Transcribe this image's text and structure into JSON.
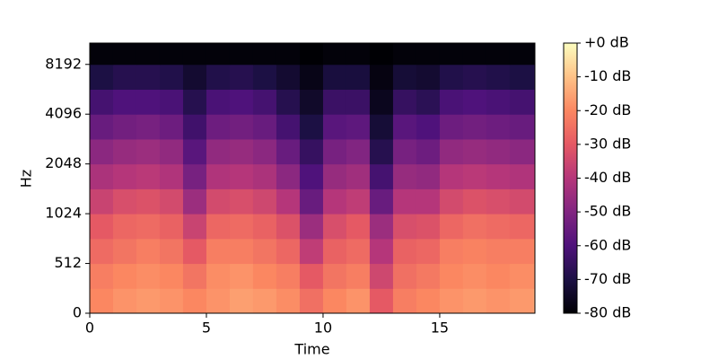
{
  "chart_data": {
    "type": "heatmap",
    "xlabel": "Time",
    "ylabel": "Hz",
    "xlim": [
      0,
      19.08
    ],
    "xticks": [
      0,
      5,
      10,
      15
    ],
    "ylim": [
      0,
      11025
    ],
    "yticks": [
      0,
      512,
      1024,
      2048,
      4096,
      8192
    ],
    "yscale": "symlog",
    "linthresh": 512,
    "x_edges": [
      0,
      1,
      2,
      3,
      4,
      5,
      6,
      7,
      8,
      9,
      10,
      11,
      12,
      13,
      14,
      15,
      16,
      17,
      18,
      19,
      19.08
    ],
    "y_edges": [
      0,
      256,
      512,
      724,
      1024,
      1448,
      2048,
      2896,
      4096,
      5793,
      8192,
      11025
    ],
    "z": [
      [
        -20,
        -18,
        -17,
        -18,
        -20,
        -18,
        -16,
        -17,
        -19,
        -25,
        -20,
        -18,
        -30,
        -22,
        -20,
        -18,
        -17,
        -18,
        -17,
        -15
      ],
      [
        -22,
        -20,
        -19,
        -20,
        -24,
        -19,
        -18,
        -20,
        -22,
        -30,
        -24,
        -22,
        -35,
        -25,
        -23,
        -20,
        -19,
        -20,
        -19,
        -18
      ],
      [
        -26,
        -24,
        -22,
        -24,
        -30,
        -22,
        -22,
        -24,
        -27,
        -38,
        -28,
        -26,
        -40,
        -28,
        -27,
        -22,
        -21,
        -22,
        -22,
        -20
      ],
      [
        -30,
        -27,
        -26,
        -28,
        -36,
        -27,
        -26,
        -28,
        -32,
        -45,
        -33,
        -30,
        -45,
        -33,
        -32,
        -27,
        -25,
        -26,
        -27,
        -26
      ],
      [
        -36,
        -33,
        -32,
        -34,
        -45,
        -34,
        -33,
        -35,
        -40,
        -55,
        -40,
        -38,
        -55,
        -40,
        -40,
        -34,
        -32,
        -33,
        -34,
        -33
      ],
      [
        -42,
        -40,
        -39,
        -41,
        -52,
        -41,
        -40,
        -42,
        -48,
        -60,
        -46,
        -44,
        -62,
        -46,
        -47,
        -40,
        -39,
        -40,
        -41,
        -40
      ],
      [
        -48,
        -46,
        -45,
        -47,
        -58,
        -47,
        -46,
        -48,
        -55,
        -65,
        -52,
        -50,
        -68,
        -52,
        -54,
        -47,
        -46,
        -47,
        -48,
        -47
      ],
      [
        -55,
        -53,
        -52,
        -54,
        -63,
        -54,
        -53,
        -55,
        -62,
        -70,
        -58,
        -57,
        -72,
        -58,
        -60,
        -54,
        -53,
        -54,
        -55,
        -54
      ],
      [
        -62,
        -60,
        -60,
        -61,
        -68,
        -61,
        -60,
        -62,
        -68,
        -74,
        -64,
        -64,
        -76,
        -65,
        -67,
        -61,
        -60,
        -61,
        -62,
        -61
      ],
      [
        -70,
        -68,
        -68,
        -69,
        -73,
        -69,
        -68,
        -70,
        -73,
        -77,
        -71,
        -71,
        -78,
        -72,
        -73,
        -69,
        -68,
        -69,
        -70,
        -69
      ],
      [
        -79,
        -79,
        -79,
        -79,
        -79,
        -79,
        -79,
        -79,
        -79,
        -80,
        -79,
        -79,
        -80,
        -79,
        -79,
        -79,
        -79,
        -79,
        -79,
        -79
      ]
    ],
    "colormap": [
      "#000004",
      "#1c1044",
      "#4f127b",
      "#812581",
      "#b5367a",
      "#e55964",
      "#fb8761",
      "#fec287",
      "#fcfdbf"
    ],
    "clim": [
      -80,
      0
    ],
    "colorbar_ticks": [
      {
        "value": 0,
        "label": "+0 dB"
      },
      {
        "value": -10,
        "label": "-10 dB"
      },
      {
        "value": -20,
        "label": "-20 dB"
      },
      {
        "value": -30,
        "label": "-30 dB"
      },
      {
        "value": -40,
        "label": "-40 dB"
      },
      {
        "value": -50,
        "label": "-50 dB"
      },
      {
        "value": -60,
        "label": "-60 dB"
      },
      {
        "value": -70,
        "label": "-70 dB"
      },
      {
        "value": -80,
        "label": "-80 dB"
      }
    ]
  }
}
